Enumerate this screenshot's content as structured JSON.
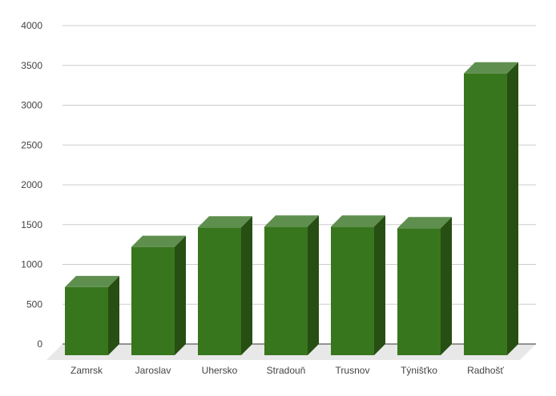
{
  "chart_data": {
    "type": "bar",
    "style": "3d",
    "title": "",
    "xlabel": "",
    "ylabel": "",
    "categories": [
      "Zamrsk",
      "Jaroslav",
      "Uhersko",
      "Stradouň",
      "Trusnov",
      "Týnišťko",
      "Radhošť"
    ],
    "values": [
      855,
      1360,
      1605,
      1615,
      1615,
      1595,
      3540
    ],
    "ylim": [
      0,
      4000
    ],
    "yticks": [
      0,
      500,
      1000,
      1500,
      2000,
      2500,
      3000,
      3500,
      4000
    ],
    "grid": true,
    "legend": "none",
    "colors": {
      "bar_front": "#38761d",
      "bar_top": "#5f8f4e",
      "bar_side": "#274e13",
      "grid": "#cccccc",
      "floor": "#e8e8e8",
      "axis": "#333333"
    }
  }
}
